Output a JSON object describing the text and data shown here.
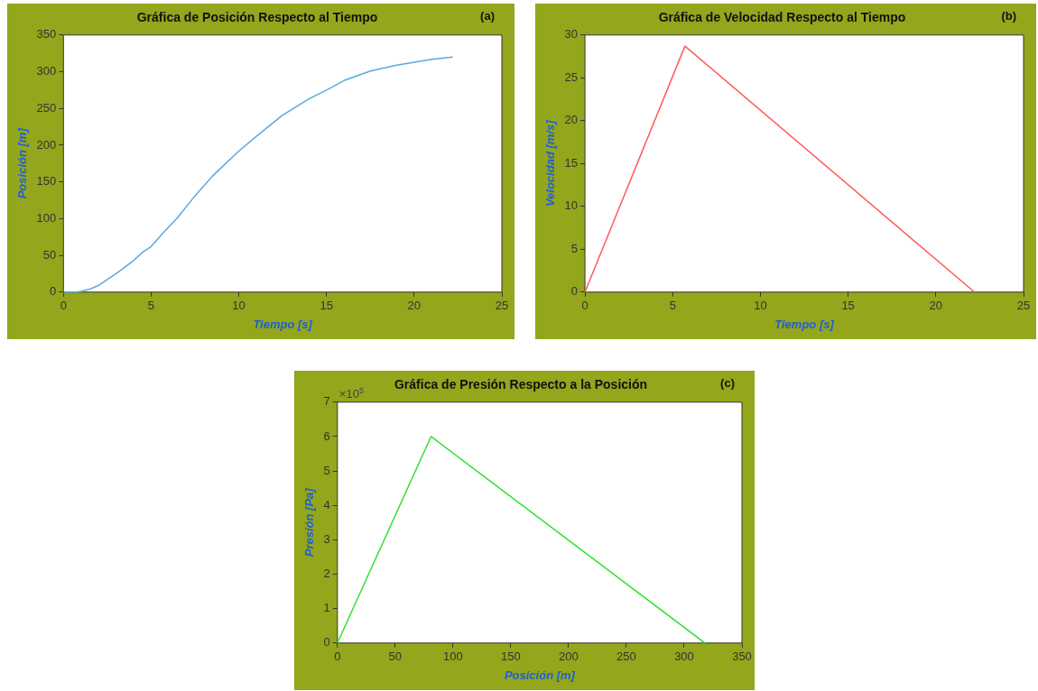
{
  "chart_data": [
    {
      "type": "line",
      "title": "Gráfica de Posición Respecto al Tiempo",
      "xlabel": "Tiempo [s]",
      "ylabel": "Posición [m]",
      "annotations": [
        "(a)"
      ],
      "x": [
        0,
        0.7,
        1,
        1.5,
        2,
        2.5,
        3,
        3.5,
        4,
        4.5,
        5,
        5.7,
        6.5,
        7.5,
        8.5,
        10,
        11,
        12.5,
        14,
        15,
        16,
        17.5,
        19,
        20,
        21,
        22.2
      ],
      "series": [
        {
          "color": "#5aaade",
          "values": [
            0,
            0,
            1,
            4,
            9,
            17,
            25,
            34,
            43,
            54,
            62,
            81,
            101,
            131,
            158,
            192,
            212,
            241,
            263,
            275,
            288,
            301,
            309,
            313,
            317,
            320
          ]
        }
      ],
      "xlim": [
        0,
        25
      ],
      "xticks": [
        0,
        5,
        10,
        15,
        20,
        25
      ],
      "ylim": [
        0,
        350
      ],
      "yticks": [
        0,
        50,
        100,
        150,
        200,
        250,
        300,
        350
      ]
    },
    {
      "type": "line",
      "title": "Gráfica de Velocidad Respecto al Tiempo",
      "xlabel": "Tiempo [s]",
      "ylabel": "Velocidad [m/s]",
      "annotations": [
        "(b)"
      ],
      "x": [
        0,
        5.7,
        22.2
      ],
      "series": [
        {
          "color": "#ff5a5a",
          "values": [
            0,
            28.7,
            0
          ]
        }
      ],
      "xlim": [
        0,
        25
      ],
      "xticks": [
        0,
        5,
        10,
        15,
        20,
        25
      ],
      "ylim": [
        0,
        30
      ],
      "yticks": [
        0,
        5,
        10,
        15,
        20,
        25,
        30
      ]
    },
    {
      "type": "line",
      "title": "Gráfica de Presión Respecto a la Posición",
      "xlabel": "Posición [m]",
      "ylabel": "Presión [Pa]",
      "annotations": [
        "(c)",
        "×10$^{5}$"
      ],
      "x": [
        0,
        81,
        318
      ],
      "series": [
        {
          "color": "#33e033",
          "values": [
            0,
            6,
            0
          ]
        }
      ],
      "xlim": [
        0,
        350
      ],
      "xticks": [
        0,
        50,
        100,
        150,
        200,
        250,
        300,
        350
      ],
      "ylim": [
        0,
        7
      ],
      "yticks": [
        0,
        1,
        2,
        3,
        4,
        5,
        6,
        7
      ]
    }
  ]
}
